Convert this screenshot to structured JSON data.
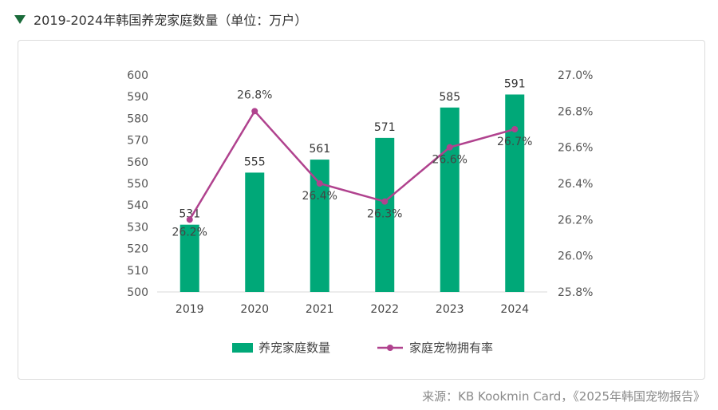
{
  "header": {
    "title": "2019-2024年韩国养宠家庭数量（单位：万户）"
  },
  "source": "来源：KB Kookmin Card，《2025年韩国宠物报告》",
  "colors": {
    "bar": "#00a878",
    "line": "#b0428e",
    "title_marker": "#1a6b3a"
  },
  "chart_data": {
    "type": "bar",
    "categories": [
      "2019",
      "2020",
      "2021",
      "2022",
      "2023",
      "2024"
    ],
    "series": [
      {
        "name": "养宠家庭数量",
        "type": "bar",
        "axis": "left",
        "values": [
          531,
          555,
          561,
          571,
          585,
          591
        ],
        "labels": [
          "531",
          "555",
          "561",
          "571",
          "585",
          "591"
        ]
      },
      {
        "name": "家庭宠物拥有率",
        "type": "line",
        "axis": "right",
        "values": [
          26.2,
          26.8,
          26.4,
          26.3,
          26.6,
          26.7
        ],
        "labels": [
          "26.2%",
          "26.8%",
          "26.4%",
          "26.3%",
          "26.6%",
          "26.7%"
        ]
      }
    ],
    "y_left": {
      "min": 500,
      "max": 600,
      "ticks": [
        "500",
        "510",
        "520",
        "530",
        "540",
        "550",
        "560",
        "570",
        "580",
        "590",
        "600"
      ]
    },
    "y_right": {
      "min": 25.8,
      "max": 27.0,
      "ticks": [
        "25.8%",
        "26.0%",
        "26.2%",
        "26.4%",
        "26.6%",
        "26.8%",
        "27.0%"
      ]
    },
    "legend": "bottom-center",
    "grid": false
  }
}
